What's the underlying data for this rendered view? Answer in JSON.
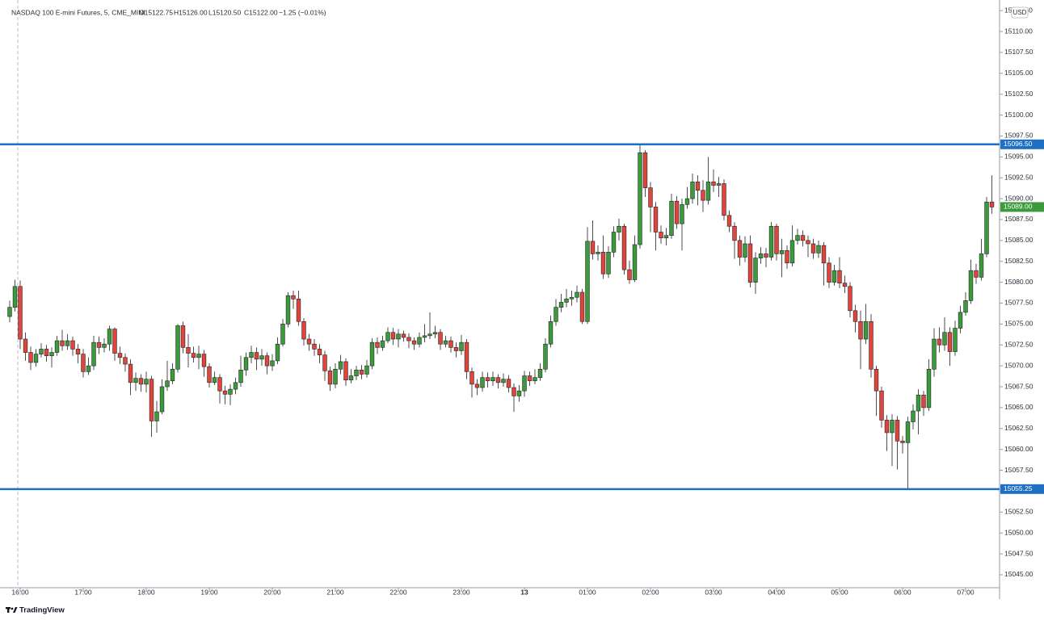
{
  "chart_data": {
    "type": "candlestick",
    "symbol": "NASDAQ 100 E-mini Futures, 5, CME_MINI",
    "ohlc_labels": [
      "O15122.75",
      "H15126.00",
      "L15120.50",
      "C15122.00",
      "−1.25 (−0.01%)"
    ],
    "currency": "USD",
    "brand": "TradingView",
    "up_color": "#3b9a3b",
    "down_color": "#e0443c",
    "wick_color": "#222222",
    "level_color": "#1f6fc5",
    "ylim": [
      15043.45,
      15113.77
    ],
    "yticks": [
      {
        "value": 15045,
        "label": "15045.00"
      },
      {
        "value": 15047.5,
        "label": "15047.50"
      },
      {
        "value": 15050,
        "label": "15050.00"
      },
      {
        "value": 15052.5,
        "label": "15052.50"
      },
      {
        "value": 15055,
        "label": "15055.00"
      },
      {
        "value": 15057.5,
        "label": "15057.50"
      },
      {
        "value": 15060,
        "label": "15060.00"
      },
      {
        "value": 15062.5,
        "label": "15062.50"
      },
      {
        "value": 15065,
        "label": "15065.00"
      },
      {
        "value": 15067.5,
        "label": "15067.50"
      },
      {
        "value": 15070,
        "label": "15070.00"
      },
      {
        "value": 15072.5,
        "label": "15072.50"
      },
      {
        "value": 15075,
        "label": "15075.00"
      },
      {
        "value": 15077.5,
        "label": "15077.50"
      },
      {
        "value": 15080,
        "label": "15080.00"
      },
      {
        "value": 15082.5,
        "label": "15082.50"
      },
      {
        "value": 15085,
        "label": "15085.00"
      },
      {
        "value": 15087.5,
        "label": "15087.50"
      },
      {
        "value": 15090,
        "label": "15090.00"
      },
      {
        "value": 15092.5,
        "label": "15092.50"
      },
      {
        "value": 15095,
        "label": "15095.00"
      },
      {
        "value": 15097.5,
        "label": "15097.50"
      },
      {
        "value": 15100,
        "label": "15100.00"
      },
      {
        "value": 15102.5,
        "label": "15102.50"
      },
      {
        "value": 15105,
        "label": "15105.00"
      },
      {
        "value": 15107.5,
        "label": "15107.50"
      },
      {
        "value": 15110,
        "label": "15110.00"
      },
      {
        "value": 15112.5,
        "label": "15112.50"
      }
    ],
    "xticks": [
      {
        "value": 2,
        "label": "16:00"
      },
      {
        "value": 14,
        "label": "17:00"
      },
      {
        "value": 26,
        "label": "18:00"
      },
      {
        "value": 38,
        "label": "19:00"
      },
      {
        "value": 50,
        "label": "20:00"
      },
      {
        "value": 62,
        "label": "21:00"
      },
      {
        "value": 74,
        "label": "22:00"
      },
      {
        "value": 86,
        "label": "23:00"
      },
      {
        "value": 98,
        "label": "13"
      },
      {
        "value": 110,
        "label": "01:00"
      },
      {
        "value": 122,
        "label": "02:00"
      },
      {
        "value": 134,
        "label": "03:00"
      },
      {
        "value": 146,
        "label": "04:00"
      },
      {
        "value": 158,
        "label": "05:00"
      },
      {
        "value": 170,
        "label": "06:00"
      },
      {
        "value": 182,
        "label": "07:00"
      }
    ],
    "levels": [
      {
        "value": 15096.5,
        "label": "15096.50"
      },
      {
        "value": 15055.25,
        "label": "15055.25"
      }
    ],
    "last_price": {
      "value": 15089,
      "label": "15089.00"
    },
    "open": [
      15075.9,
      15077.0,
      15079.5,
      15073.2,
      15071.6,
      15070.4,
      15071.4,
      15072.0,
      15071.2,
      15071.6,
      15073.0,
      15072.4,
      15073.0,
      15072.0,
      15071.4,
      15069.3,
      15070.0,
      15072.8,
      15072.2,
      15072.6,
      15074.4,
      15071.5,
      15071.0,
      15070.2,
      15068.0,
      15068.5,
      15067.8,
      15068.4,
      15063.4,
      15064.5,
      15067.5,
      15068.2,
      15069.6,
      15074.8,
      15072.2,
      15071.5,
      15071.0,
      15071.4,
      15069.9,
      15068.0,
      15068.6,
      15067.0,
      15066.6,
      15067.2,
      15068.0,
      15069.5,
      15071.0,
      15071.6,
      15070.8,
      15071.2,
      15070.0,
      15070.6,
      15072.6,
      15075.0,
      15078.4,
      15078.0,
      15075.3,
      15073.2,
      15072.6,
      15072.0,
      15071.3,
      15069.4,
      15067.8,
      15069.6,
      15070.5,
      15068.3,
      15068.8,
      15069.5,
      15069.0,
      15070.0,
      15072.8,
      15072.2,
      15073.0,
      15074.0,
      15073.2,
      15073.8,
      15073.4,
      15073.0,
      15072.6,
      15073.4,
      15073.6,
      15073.8,
      15074.0,
      15072.6,
      15073.0,
      15072.2,
      15071.8,
      15072.8,
      15069.3,
      15067.8,
      15067.4,
      15068.6,
      15068.2,
      15068.6,
      15068.0,
      15068.4,
      15067.4,
      15066.4,
      15067.0,
      15068.8,
      15068.2,
      15068.6,
      15069.6,
      15072.6,
      15075.3,
      15077.0,
      15077.6,
      15078.0,
      15078.2,
      15078.8,
      15075.3,
      15084.9,
      15083.4,
      15083.6,
      15081.0,
      15083.6,
      15086.0,
      15086.7,
      15081.5,
      15080.3,
      15084.5,
      15095.5,
      15091.3,
      15089.0,
      15086.0,
      15085.3,
      15085.6,
      15089.7,
      15087.0,
      15089.3,
      15090.0,
      15092.0,
      15091.0,
      15089.8,
      15092.0,
      15091.6,
      15091.8,
      15088.0,
      15086.7,
      15085.0,
      15083.0,
      15084.6,
      15080.0,
      15082.9,
      15083.4,
      15083.0,
      15086.7,
      15083.4,
      15083.8,
      15082.3,
      15085.0,
      15085.6,
      15085.0,
      15084.6,
      15083.5,
      15084.4,
      15082.3,
      15080.0,
      15081.4,
      15079.9,
      15079.5,
      15076.6,
      15075.3,
      15073.2,
      15075.3,
      15069.6,
      15067.0,
      15063.5,
      15062.0,
      15063.5,
      15061.0,
      15060.8,
      15063.3,
      15064.6,
      15066.5,
      15065.0,
      15069.6,
      15073.2,
      15072.5,
      15074.0,
      15071.7,
      15074.5,
      15076.4,
      15077.8,
      15081.4,
      15080.6,
      15083.4,
      15089.6
    ],
    "high": [
      15077.8,
      15080.3,
      15080.2,
      15074.0,
      15072.3,
      15072.0,
      15072.7,
      15072.5,
      15072.2,
      15073.6,
      15074.3,
      15073.8,
      15073.5,
      15072.6,
      15072.0,
      15071.0,
      15073.6,
      15073.5,
      15073.3,
      15074.8,
      15074.6,
      15072.3,
      15071.5,
      15070.8,
      15069.2,
      15069.0,
      15069.3,
      15068.8,
      15065.8,
      15068.4,
      15070.6,
      15070.3,
      15075.0,
      15075.3,
      15073.8,
      15072.3,
      15072.4,
      15071.9,
      15070.3,
      15069.3,
      15069.0,
      15067.6,
      15067.8,
      15068.6,
      15071.2,
      15071.6,
      15072.4,
      15072.2,
      15072.0,
      15071.6,
      15071.4,
      15073.4,
      15075.6,
      15078.8,
      15079.0,
      15079.0,
      15075.7,
      15073.8,
      15073.2,
      15072.6,
      15071.8,
      15069.9,
      15070.3,
      15071.3,
      15070.9,
      15069.6,
      15070.0,
      15070.1,
      15070.7,
      15073.3,
      15073.4,
      15073.6,
      15074.6,
      15074.5,
      15074.4,
      15074.2,
      15073.9,
      15073.4,
      15074.0,
      15075.0,
      15076.4,
      15074.8,
      15074.4,
      15073.6,
      15073.5,
      15072.8,
      15073.7,
      15073.2,
      15069.8,
      15068.4,
      15069.3,
      15069.2,
      15069.3,
      15069.0,
      15069.1,
      15068.9,
      15067.9,
      15067.7,
      15069.4,
      15069.3,
      15069.6,
      15070.3,
      15073.3,
      15076.0,
      15078.0,
      15078.6,
      15079.2,
      15079.0,
      15079.6,
      15079.2,
      15086.6,
      15087.4,
      15084.4,
      15085.6,
      15084.3,
      15086.7,
      15087.6,
      15087.0,
      15082.6,
      15085.6,
      15096.5,
      15095.8,
      15092.0,
      15089.6,
      15086.8,
      15086.5,
      15090.6,
      15090.3,
      15090.0,
      15091.4,
      15093.0,
      15092.8,
      15092.2,
      15095.0,
      15093.5,
      15092.6,
      15092.3,
      15088.6,
      15087.2,
      15085.6,
      15085.5,
      15085.6,
      15083.6,
      15084.2,
      15084.1,
      15087.2,
      15087.0,
      15085.2,
      15084.4,
      15086.8,
      15086.4,
      15086.2,
      15085.6,
      15085.2,
      15085.0,
      15084.8,
      15083.0,
      15082.1,
      15083.0,
      15080.8,
      15080.0,
      15077.3,
      15076.6,
      15077.4,
      15076.2,
      15070.0,
      15067.5,
      15064.1,
      15064.2,
      15064.0,
      15061.6,
      15063.9,
      15065.4,
      15067.2,
      15067.0,
      15070.8,
      15074.5,
      15074.6,
      15075.8,
      15074.6,
      15075.4,
      15077.2,
      15078.8,
      15082.7,
      15082.2,
      15085.2,
      15090.2,
      15092.8
    ],
    "low": [
      15075.2,
      15076.5,
      15072.0,
      15070.6,
      15069.5,
      15069.9,
      15071.0,
      15070.5,
      15069.8,
      15071.2,
      15071.8,
      15071.9,
      15071.2,
      15070.3,
      15068.6,
      15068.9,
      15069.5,
      15071.4,
      15071.6,
      15071.8,
      15070.6,
      15070.2,
      15069.3,
      15066.5,
      15067.0,
      15066.9,
      15066.8,
      15061.5,
      15062.0,
      15064.2,
      15067.0,
      15067.8,
      15069.2,
      15071.5,
      15069.8,
      15070.4,
      15069.6,
      15068.7,
      15067.4,
      15067.7,
      15065.5,
      15065.4,
      15065.3,
      15066.6,
      15067.5,
      15068.8,
      15070.3,
      15069.5,
      15070.0,
      15069.0,
      15069.4,
      15070.2,
      15072.3,
      15074.6,
      15076.8,
      15074.8,
      15072.4,
      15071.8,
      15071.2,
      15070.3,
      15068.2,
      15067.0,
      15067.3,
      15069.0,
      15067.6,
      15067.9,
      15068.3,
      15068.4,
      15068.6,
      15069.6,
      15071.4,
      15071.8,
      15072.7,
      15072.5,
      15072.2,
      15072.9,
      15072.1,
      15071.9,
      15072.2,
      15072.8,
      15073.2,
      15073.3,
      15071.9,
      15072.2,
      15071.6,
      15071.0,
      15071.3,
      15068.4,
      15066.2,
      15066.5,
      15066.9,
      15067.4,
      15067.6,
      15067.3,
      15067.5,
      15066.8,
      15064.5,
      15065.7,
      15066.3,
      15067.6,
      15067.8,
      15068.2,
      15069.2,
      15072.2,
      15074.8,
      15076.4,
      15077.0,
      15077.2,
      15077.6,
      15075.0,
      15075.0,
      15082.7,
      15082.6,
      15080.4,
      15080.5,
      15083.0,
      15085.0,
      15080.9,
      15079.8,
      15080.0,
      15084.0,
      15090.2,
      15086.0,
      15083.8,
      15084.6,
      15084.4,
      15085.2,
      15086.4,
      15083.8,
      15088.8,
      15089.4,
      15089.2,
      15088.4,
      15089.3,
      15090.8,
      15090.2,
      15087.4,
      15086.0,
      15082.8,
      15082.0,
      15082.4,
      15079.4,
      15078.6,
      15082.2,
      15081.8,
      15082.6,
      15082.6,
      15080.6,
      15081.6,
      15081.9,
      15084.5,
      15084.3,
      15083.0,
      15082.8,
      15082.9,
      15079.6,
      15079.3,
      15079.6,
      15079.3,
      15078.7,
      15075.8,
      15074.0,
      15069.6,
      15072.6,
      15068.6,
      15064.0,
      15062.6,
      15059.8,
      15058.0,
      15057.6,
      15059.5,
      15055.25,
      15062.4,
      15061.8,
      15064.0,
      15064.6,
      15068.7,
      15071.6,
      15071.8,
      15070.0,
      15071.2,
      15073.9,
      15076.0,
      15077.4,
      15079.8,
      15080.2,
      15083.0,
      15088.2
    ],
    "close": [
      15077.0,
      15079.5,
      15073.2,
      15071.6,
      15070.4,
      15071.4,
      15072.0,
      15071.2,
      15071.6,
      15073.0,
      15072.4,
      15073.0,
      15072.0,
      15071.4,
      15069.3,
      15070.0,
      15072.8,
      15072.2,
      15072.6,
      15074.4,
      15071.5,
      15071.0,
      15070.2,
      15068.0,
      15068.5,
      15067.8,
      15068.4,
      15063.4,
      15064.5,
      15067.5,
      15068.2,
      15069.6,
      15074.8,
      15072.2,
      15071.5,
      15071.0,
      15071.4,
      15069.9,
      15068.0,
      15068.6,
      15067.0,
      15066.6,
      15067.2,
      15068.0,
      15069.5,
      15071.0,
      15071.6,
      15070.8,
      15071.2,
      15070.0,
      15070.6,
      15072.6,
      15075.0,
      15078.4,
      15078.0,
      15075.3,
      15073.2,
      15072.6,
      15072.0,
      15071.3,
      15069.4,
      15067.8,
      15069.6,
      15070.5,
      15068.3,
      15068.8,
      15069.5,
      15069.0,
      15070.0,
      15072.8,
      15072.2,
      15073.0,
      15074.0,
      15073.2,
      15073.8,
      15073.4,
      15073.0,
      15072.6,
      15073.4,
      15073.6,
      15073.8,
      15074.0,
      15072.6,
      15073.0,
      15072.2,
      15071.8,
      15072.8,
      15069.3,
      15067.8,
      15067.4,
      15068.6,
      15068.2,
      15068.6,
      15068.0,
      15068.4,
      15067.4,
      15066.4,
      15067.0,
      15068.8,
      15068.2,
      15068.6,
      15069.6,
      15072.6,
      15075.3,
      15077.0,
      15077.6,
      15078.0,
      15078.2,
      15078.8,
      15075.3,
      15084.9,
      15083.4,
      15083.6,
      15081.0,
      15083.6,
      15086.0,
      15086.7,
      15081.5,
      15080.3,
      15084.5,
      15095.5,
      15091.3,
      15089.0,
      15086.0,
      15085.3,
      15085.6,
      15089.7,
      15087.0,
      15089.3,
      15090.0,
      15092.0,
      15091.0,
      15089.8,
      15092.0,
      15091.6,
      15091.8,
      15088.0,
      15086.7,
      15085.0,
      15083.0,
      15084.6,
      15080.0,
      15082.9,
      15083.4,
      15083.0,
      15086.7,
      15083.4,
      15083.8,
      15082.3,
      15085.0,
      15085.6,
      15085.0,
      15084.6,
      15083.5,
      15084.4,
      15082.3,
      15080.0,
      15081.4,
      15079.9,
      15079.5,
      15076.6,
      15075.3,
      15073.2,
      15075.3,
      15069.6,
      15067.0,
      15063.5,
      15062.0,
      15063.5,
      15061.0,
      15060.8,
      15063.3,
      15064.6,
      15066.5,
      15065.0,
      15069.6,
      15073.2,
      15072.5,
      15074.0,
      15071.7,
      15074.5,
      15076.4,
      15077.8,
      15081.4,
      15080.6,
      15083.4,
      15089.6,
      15089.0
    ]
  }
}
